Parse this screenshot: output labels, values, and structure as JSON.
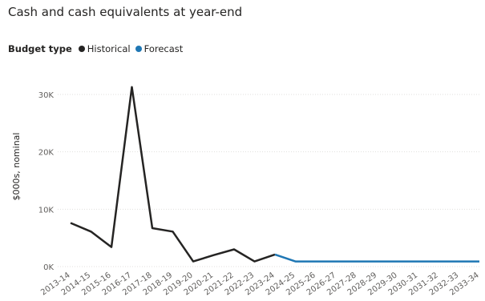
{
  "chart_data": {
    "type": "line",
    "title": "Cash and cash equivalents at year-end",
    "xlabel": "",
    "ylabel": "$000s, nominal",
    "categories": [
      "2013-14",
      "2014-15",
      "2015-16",
      "2016-17",
      "2017-18",
      "2018-19",
      "2019-20",
      "2020-21",
      "2021-22",
      "2022-23",
      "2023-24",
      "2024-25",
      "2025-26",
      "2026-27",
      "2027-28",
      "2028-29",
      "2029-30",
      "2030-31",
      "2031-32",
      "2032-33",
      "2033-34"
    ],
    "ylim": [
      0,
      30000
    ],
    "yticks": [
      0,
      10000,
      20000,
      30000
    ],
    "ytick_labels": [
      "0K",
      "10K",
      "20K",
      "30K"
    ],
    "grid": true,
    "legend": {
      "title": "Budget type",
      "placement": "top-left"
    },
    "series": [
      {
        "name": "Historical",
        "color": "#252423",
        "values": [
          7600,
          6100,
          3400,
          31300,
          6700,
          6100,
          900,
          2000,
          3000,
          900,
          2100,
          null,
          null,
          null,
          null,
          null,
          null,
          null,
          null,
          null,
          null
        ]
      },
      {
        "name": "Forecast",
        "color": "#1f77b4",
        "values": [
          null,
          null,
          null,
          null,
          null,
          null,
          null,
          null,
          null,
          null,
          2100,
          900,
          900,
          900,
          900,
          900,
          900,
          900,
          900,
          900,
          900
        ]
      }
    ]
  }
}
